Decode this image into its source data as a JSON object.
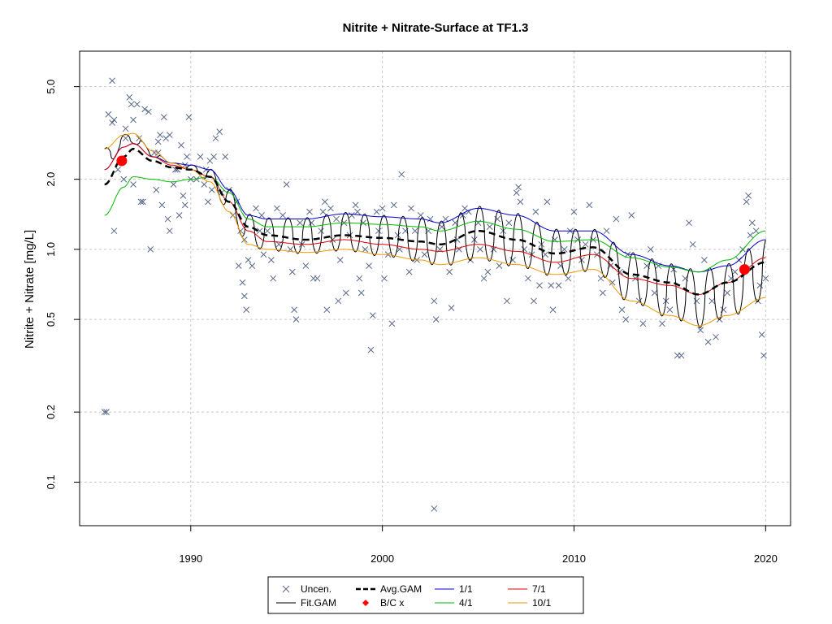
{
  "chart_data": {
    "type": "line",
    "title": "Nitrite + Nitrate-Surface at TF1.3",
    "xlabel": "",
    "ylabel": "Nitrite + Nitrate [mg/L]",
    "xlim": [
      1984.2,
      2021.3
    ],
    "ylim": [
      0.065,
      7.1
    ],
    "ylog": true,
    "grid": true,
    "x_ticks": [
      1990,
      2000,
      2010,
      2020
    ],
    "x_tick_labels": [
      "1990",
      "2000",
      "2010",
      "2020"
    ],
    "y_ticks": [
      0.1,
      0.2,
      0.5,
      1.0,
      2.0,
      5.0
    ],
    "y_tick_labels": [
      "0.1",
      "0.2",
      "0.5",
      "1.0",
      "2.0",
      "5.0"
    ],
    "legend": {
      "placement": "bottom-center",
      "entries": [
        {
          "label": "Uncen.",
          "type": "cross",
          "color": "#5a6a8a"
        },
        {
          "label": "Fit.GAM",
          "type": "line",
          "color": "#000000"
        },
        {
          "label": "Avg.GAM",
          "type": "dashed",
          "color": "#000000"
        },
        {
          "label": "B/C x",
          "type": "diamond",
          "color": "#ff0000"
        },
        {
          "label": "1/1",
          "type": "line",
          "color": "#0000cc"
        },
        {
          "label": "4/1",
          "type": "line",
          "color": "#00bb00"
        },
        {
          "label": "7/1",
          "type": "line",
          "color": "#dd0000"
        },
        {
          "label": "10/1",
          "type": "line",
          "color": "#ee9900"
        }
      ]
    },
    "colors": {
      "points": "#5a6a8a",
      "fit": "#000000",
      "avg": "#000000",
      "bc": "#ff0000",
      "jan": "#0000cc",
      "apr": "#00bb00",
      "jul": "#dd0000",
      "oct": "#ee9900",
      "grid": "#c8c8c8"
    },
    "knots_x": [
      1985.5,
      1986.5,
      1987.0,
      1988.0,
      1989.0,
      1990.0,
      1991.0,
      1992.0,
      1993.0,
      1994.0,
      1996.0,
      1998.0,
      2000.0,
      2002.0,
      2003.0,
      2005.0,
      2007.0,
      2009.0,
      2011.0,
      2013.0,
      2015.0,
      2016.5,
      2018.0,
      2020.0
    ],
    "avg_gam": [
      1.9,
      2.5,
      2.7,
      2.4,
      2.25,
      2.2,
      2.05,
      1.6,
      1.25,
      1.15,
      1.1,
      1.15,
      1.12,
      1.08,
      1.05,
      1.2,
      1.1,
      0.96,
      1.02,
      0.78,
      0.72,
      0.64,
      0.72,
      0.88
    ],
    "series": [
      {
        "name": "1/1",
        "values": [
          2.2,
          2.75,
          2.85,
          2.5,
          2.35,
          2.3,
          2.2,
          1.8,
          1.4,
          1.35,
          1.35,
          1.42,
          1.38,
          1.35,
          1.3,
          1.5,
          1.4,
          1.2,
          1.2,
          0.95,
          0.85,
          0.8,
          0.85,
          1.1
        ]
      },
      {
        "name": "4/1",
        "values": [
          1.4,
          1.85,
          2.05,
          2.0,
          1.95,
          2.0,
          2.05,
          1.75,
          1.35,
          1.25,
          1.25,
          1.3,
          1.28,
          1.25,
          1.2,
          1.32,
          1.22,
          1.08,
          1.1,
          0.92,
          0.84,
          0.8,
          0.9,
          1.2
        ]
      },
      {
        "name": "7/1",
        "values": [
          2.2,
          2.75,
          2.85,
          2.5,
          2.3,
          2.2,
          2.05,
          1.6,
          1.2,
          1.08,
          1.05,
          1.1,
          1.05,
          1.0,
          0.98,
          1.05,
          0.98,
          0.88,
          0.95,
          0.75,
          0.7,
          0.64,
          0.72,
          0.92
        ]
      },
      {
        "name": "10/1",
        "values": [
          2.7,
          3.1,
          3.15,
          2.65,
          2.35,
          2.2,
          1.95,
          1.45,
          1.05,
          1.0,
          0.97,
          1.0,
          0.95,
          0.9,
          0.86,
          0.92,
          0.86,
          0.78,
          0.82,
          0.6,
          0.52,
          0.47,
          0.52,
          0.62
        ]
      }
    ],
    "fit_gam": {
      "x_start": 1985.5,
      "x_end": 2020.0,
      "period_years": 1.0,
      "peak_phase": 0.08,
      "trough_phase": 0.58
    },
    "bc_points": [
      {
        "x": 1986.4,
        "y": 2.4
      },
      {
        "x": 2018.9,
        "y": 0.82
      }
    ],
    "observations": [
      [
        1985.5,
        0.2
      ],
      [
        1985.6,
        0.2
      ],
      [
        1985.9,
        5.3
      ],
      [
        1985.9,
        3.5
      ],
      [
        1986.0,
        3.6
      ],
      [
        1985.7,
        3.8
      ],
      [
        1986.2,
        2.2
      ],
      [
        1986.6,
        3.0
      ],
      [
        1986.6,
        3.3
      ],
      [
        1986.5,
        2.0
      ],
      [
        1986.0,
        1.2
      ],
      [
        1986.8,
        4.5
      ],
      [
        1986.9,
        4.2
      ],
      [
        1987.0,
        3.6
      ],
      [
        1987.2,
        4.2
      ],
      [
        1987.3,
        3.0
      ],
      [
        1987.5,
        1.6
      ],
      [
        1987.6,
        4.0
      ],
      [
        1987.8,
        3.9
      ],
      [
        1987.4,
        1.6
      ],
      [
        1987.0,
        1.9
      ],
      [
        1987.9,
        1.0
      ],
      [
        1988.1,
        2.6
      ],
      [
        1988.3,
        2.9
      ],
      [
        1988.4,
        3.1
      ],
      [
        1988.6,
        3.7
      ],
      [
        1988.7,
        3.0
      ],
      [
        1988.2,
        1.8
      ],
      [
        1988.8,
        1.35
      ],
      [
        1988.9,
        3.1
      ],
      [
        1988.5,
        1.55
      ],
      [
        1988.9,
        1.2
      ],
      [
        1988.3,
        2.6
      ],
      [
        1989.2,
        2.2
      ],
      [
        1989.4,
        1.4
      ],
      [
        1989.5,
        2.8
      ],
      [
        1989.6,
        1.7
      ],
      [
        1989.8,
        2.5
      ],
      [
        1989.9,
        3.7
      ],
      [
        1989.7,
        2.3
      ],
      [
        1989.1,
        1.9
      ],
      [
        1989.3,
        2.2
      ],
      [
        1989.7,
        1.55
      ],
      [
        1990.0,
        2.0
      ],
      [
        1990.3,
        2.0
      ],
      [
        1990.5,
        2.5
      ],
      [
        1990.7,
        1.9
      ],
      [
        1990.8,
        2.2
      ],
      [
        1991.0,
        2.4
      ],
      [
        1990.9,
        1.6
      ],
      [
        1991.2,
        2.5
      ],
      [
        1991.3,
        3.0
      ],
      [
        1991.5,
        3.2
      ],
      [
        1991.6,
        1.75
      ],
      [
        1991.8,
        2.5
      ],
      [
        1991.1,
        1.8
      ],
      [
        1992.0,
        1.8
      ],
      [
        1992.2,
        1.4
      ],
      [
        1992.4,
        1.6
      ],
      [
        1992.6,
        1.2
      ],
      [
        1992.8,
        1.1
      ],
      [
        1992.5,
        0.85
      ],
      [
        1992.7,
        0.72
      ],
      [
        1992.9,
        0.55
      ],
      [
        1992.8,
        0.63
      ],
      [
        1993.0,
        0.9
      ],
      [
        1993.2,
        0.85
      ],
      [
        1993.4,
        1.5
      ],
      [
        1993.6,
        1.2
      ],
      [
        1993.7,
        1.4
      ],
      [
        1993.8,
        0.95
      ],
      [
        1994.0,
        1.2
      ],
      [
        1994.2,
        0.9
      ],
      [
        1994.3,
        0.75
      ],
      [
        1994.5,
        1.5
      ],
      [
        1994.6,
        1.05
      ],
      [
        1994.8,
        1.4
      ],
      [
        1995.0,
        1.9
      ],
      [
        1995.2,
        1.0
      ],
      [
        1995.3,
        0.8
      ],
      [
        1995.4,
        0.55
      ],
      [
        1995.5,
        0.5
      ],
      [
        1995.7,
        1.3
      ],
      [
        1995.8,
        1.05
      ],
      [
        1996.0,
        0.85
      ],
      [
        1996.2,
        1.45
      ],
      [
        1996.3,
        1.3
      ],
      [
        1996.4,
        0.75
      ],
      [
        1996.6,
        0.75
      ],
      [
        1996.8,
        1.2
      ],
      [
        1996.9,
        1.45
      ],
      [
        1997.0,
        1.6
      ],
      [
        1997.1,
        0.55
      ],
      [
        1997.3,
        1.5
      ],
      [
        1997.4,
        1.1
      ],
      [
        1997.6,
        1.35
      ],
      [
        1997.7,
        0.6
      ],
      [
        1997.8,
        0.9
      ],
      [
        1998.0,
        1.3
      ],
      [
        1998.1,
        0.65
      ],
      [
        1998.3,
        1.15
      ],
      [
        1998.4,
        1.4
      ],
      [
        1998.6,
        1.55
      ],
      [
        1998.7,
        1.45
      ],
      [
        1998.8,
        0.75
      ],
      [
        1998.9,
        0.65
      ],
      [
        1999.0,
        1.3
      ],
      [
        1999.1,
        1.0
      ],
      [
        1999.3,
        0.85
      ],
      [
        1999.4,
        0.37
      ],
      [
        1999.5,
        0.52
      ],
      [
        1999.7,
        1.45
      ],
      [
        1999.8,
        1.2
      ],
      [
        2000.0,
        1.5
      ],
      [
        2000.1,
        0.75
      ],
      [
        2000.3,
        0.95
      ],
      [
        2000.5,
        0.48
      ],
      [
        2000.6,
        1.55
      ],
      [
        2000.8,
        1.15
      ],
      [
        2000.9,
        1.0
      ],
      [
        2001.0,
        2.1
      ],
      [
        2001.2,
        1.2
      ],
      [
        2001.4,
        0.8
      ],
      [
        2001.5,
        1.5
      ],
      [
        2001.7,
        1.2
      ],
      [
        2001.8,
        0.9
      ],
      [
        2002.0,
        1.4
      ],
      [
        2002.2,
        0.95
      ],
      [
        2002.4,
        1.2
      ],
      [
        2002.5,
        1.35
      ],
      [
        2002.7,
        0.6
      ],
      [
        2002.8,
        0.5
      ],
      [
        2002.7,
        0.077
      ],
      [
        2003.0,
        1.0
      ],
      [
        2003.1,
        1.25
      ],
      [
        2003.3,
        1.35
      ],
      [
        2003.5,
        0.8
      ],
      [
        2003.6,
        0.56
      ],
      [
        2003.8,
        1.3
      ],
      [
        2003.9,
        1.1
      ],
      [
        2004.0,
        1.0
      ],
      [
        2004.2,
        1.4
      ],
      [
        2004.3,
        1.5
      ],
      [
        2004.5,
        1.45
      ],
      [
        2004.6,
        0.9
      ],
      [
        2004.8,
        1.1
      ],
      [
        2005.0,
        1.3
      ],
      [
        2005.1,
        1.0
      ],
      [
        2005.3,
        0.75
      ],
      [
        2005.5,
        0.8
      ],
      [
        2005.6,
        1.25
      ],
      [
        2005.8,
        1.0
      ],
      [
        2006.0,
        1.35
      ],
      [
        2006.1,
        0.85
      ],
      [
        2006.3,
        1.2
      ],
      [
        2006.5,
        0.6
      ],
      [
        2006.6,
        1.3
      ],
      [
        2006.8,
        0.9
      ],
      [
        2007.0,
        1.75
      ],
      [
        2007.1,
        1.85
      ],
      [
        2007.2,
        1.6
      ],
      [
        2007.4,
        1.0
      ],
      [
        2007.6,
        0.75
      ],
      [
        2007.8,
        0.95
      ],
      [
        2007.9,
        0.6
      ],
      [
        2008.0,
        1.45
      ],
      [
        2008.2,
        0.7
      ],
      [
        2008.3,
        1.05
      ],
      [
        2008.5,
        0.95
      ],
      [
        2008.6,
        1.6
      ],
      [
        2008.8,
        0.7
      ],
      [
        2008.9,
        0.55
      ],
      [
        2009.0,
        1.1
      ],
      [
        2009.2,
        0.7
      ],
      [
        2009.3,
        0.85
      ],
      [
        2009.5,
        1.0
      ],
      [
        2009.7,
        0.75
      ],
      [
        2009.8,
        1.2
      ],
      [
        2010.0,
        1.45
      ],
      [
        2010.2,
        1.1
      ],
      [
        2010.4,
        0.9
      ],
      [
        2010.6,
        1.05
      ],
      [
        2010.8,
        1.55
      ],
      [
        2011.0,
        1.1
      ],
      [
        2011.2,
        0.95
      ],
      [
        2011.4,
        0.75
      ],
      [
        2011.5,
        0.65
      ],
      [
        2011.7,
        1.2
      ],
      [
        2011.9,
        0.85
      ],
      [
        2012.0,
        0.72
      ],
      [
        2012.2,
        1.35
      ],
      [
        2012.4,
        0.8
      ],
      [
        2012.5,
        0.55
      ],
      [
        2012.7,
        0.5
      ],
      [
        2012.8,
        0.95
      ],
      [
        2013.0,
        1.4
      ],
      [
        2013.2,
        0.75
      ],
      [
        2013.4,
        0.6
      ],
      [
        2013.6,
        0.48
      ],
      [
        2013.8,
        0.85
      ],
      [
        2014.0,
        1.0
      ],
      [
        2014.2,
        0.65
      ],
      [
        2014.4,
        0.85
      ],
      [
        2014.6,
        0.48
      ],
      [
        2014.8,
        0.6
      ],
      [
        2015.0,
        0.55
      ],
      [
        2015.2,
        0.82
      ],
      [
        2015.4,
        0.35
      ],
      [
        2015.6,
        0.35
      ],
      [
        2015.8,
        0.75
      ],
      [
        2016.0,
        1.3
      ],
      [
        2016.2,
        1.05
      ],
      [
        2016.4,
        0.6
      ],
      [
        2016.6,
        0.45
      ],
      [
        2016.8,
        0.9
      ],
      [
        2017.0,
        0.4
      ],
      [
        2017.2,
        0.6
      ],
      [
        2017.4,
        0.42
      ],
      [
        2017.6,
        0.5
      ],
      [
        2017.8,
        0.55
      ],
      [
        2018.0,
        0.65
      ],
      [
        2018.2,
        0.75
      ],
      [
        2018.4,
        0.8
      ],
      [
        2018.6,
        0.9
      ],
      [
        2018.8,
        1.0
      ],
      [
        2019.0,
        1.6
      ],
      [
        2019.1,
        1.7
      ],
      [
        2019.3,
        1.3
      ],
      [
        2019.5,
        1.2
      ],
      [
        2019.7,
        0.7
      ],
      [
        2019.8,
        0.43
      ],
      [
        2019.9,
        0.35
      ],
      [
        2020.0,
        0.75
      ],
      [
        2019.6,
        0.6
      ],
      [
        2019.2,
        1.15
      ]
    ]
  }
}
